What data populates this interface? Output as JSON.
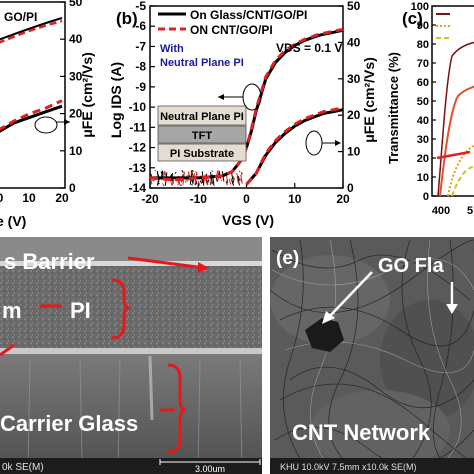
{
  "panel_a": {
    "xlabel_partial": "e (V)",
    "xticks": [
      "0",
      "10",
      "20"
    ],
    "right_ticks": [
      "50",
      "40",
      "30",
      "20",
      "10",
      "0"
    ],
    "right_label": "μFE (cm²/Vs)",
    "legend_partial": "GO/PI"
  },
  "panel_b": {
    "letter": "(b)",
    "legend": [
      "On Glass/CNT/GO/PI",
      "ON CNT/GO/PI"
    ],
    "annotation_with": "With",
    "annotation_npi": "Neutral Plane PI",
    "vds": "VDS = 0.1 V",
    "layers": [
      "Neutral Plane PI",
      "TFT",
      "PI Substrate"
    ],
    "ylabel": "Log IDS (A)",
    "xlabel": "VGS (V)",
    "yticks_left": [
      "-5",
      "-6",
      "-7",
      "-8",
      "-9",
      "-10",
      "-11",
      "-12",
      "-13",
      "-14"
    ],
    "xticks": [
      "-20",
      "-10",
      "0",
      "10",
      "20"
    ],
    "yticks_right": [
      "50",
      "40",
      "30",
      "20",
      "10",
      "0"
    ],
    "right_label": "μFE (cm²/Vs)"
  },
  "panel_c": {
    "letter": "(c)",
    "ylabel": "Transmittance (%)",
    "yticks": [
      "100",
      "90",
      "80",
      "70",
      "60",
      "50",
      "40",
      "30",
      "20",
      "10",
      "0"
    ],
    "xticks": [
      "400",
      "5"
    ]
  },
  "panel_d": {
    "labels": [
      "s Barrier",
      "m",
      "PI",
      "Carrier Glass"
    ],
    "scale_text": "3.00um",
    "info_text": "0k SE(M)"
  },
  "panel_e": {
    "letter": "(e)",
    "go_label": "GO Fla",
    "cnt_label": "CNT Network",
    "info_text": "KHU 10.0kV 7.5mm x10.0k SE(M)"
  },
  "chart_data": [
    {
      "type": "line",
      "panel": "b",
      "xlabel": "VGS (V)",
      "ylabel": "Log IDS (A)",
      "xlim": [
        -20,
        20
      ],
      "ylim": [
        -14,
        -5
      ],
      "x": [
        -20,
        -15,
        -10,
        -5,
        -3,
        -1,
        0,
        1,
        2,
        4,
        6,
        8,
        10,
        12,
        15,
        18,
        20
      ],
      "series": [
        {
          "name": "On Glass/CNT/GO/PI",
          "axis": "left",
          "values": [
            -13.5,
            -13.5,
            -13.5,
            -13.4,
            -13.2,
            -12.6,
            -12.0,
            -11.2,
            -10.2,
            -8.6,
            -7.8,
            -7.3,
            -6.95,
            -6.7,
            -6.45,
            -6.3,
            -6.2
          ]
        },
        {
          "name": "ON CNT/GO/PI",
          "axis": "left",
          "values": [
            -13.5,
            -13.6,
            -13.5,
            -13.4,
            -13.2,
            -12.6,
            -12.0,
            -11.1,
            -10.1,
            -8.5,
            -7.7,
            -7.2,
            -6.9,
            -6.65,
            -6.4,
            -6.25,
            -6.15
          ]
        }
      ],
      "right_axis": {
        "label": "μFE (cm²/Vs)",
        "ylim": [
          0,
          50
        ],
        "x": [
          0,
          2,
          4,
          6,
          8,
          10,
          12,
          14,
          16,
          18,
          20
        ],
        "series": [
          {
            "name": "On Glass/CNT/GO/PI",
            "values": [
              1,
              4,
              9,
              12.5,
              15,
              17,
              18.5,
              19.5,
              20.5,
              21,
              21.5
            ]
          },
          {
            "name": "ON CNT/GO/PI",
            "values": [
              1,
              4,
              9.5,
              13,
              15.5,
              17.5,
              19,
              20,
              21,
              21.5,
              22
            ]
          }
        ]
      }
    },
    {
      "type": "line",
      "panel": "a",
      "xlim": [
        -20,
        20
      ],
      "right_axis_ylim": [
        0,
        50
      ],
      "x": [
        0,
        5,
        10,
        15,
        20
      ],
      "series": [
        {
          "name": "",
          "values": [
            15,
            17.5,
            19,
            20.5,
            22
          ]
        },
        {
          "name": "",
          "values": [
            15.5,
            18,
            20,
            21.5,
            23.5
          ]
        }
      ]
    }
  ]
}
